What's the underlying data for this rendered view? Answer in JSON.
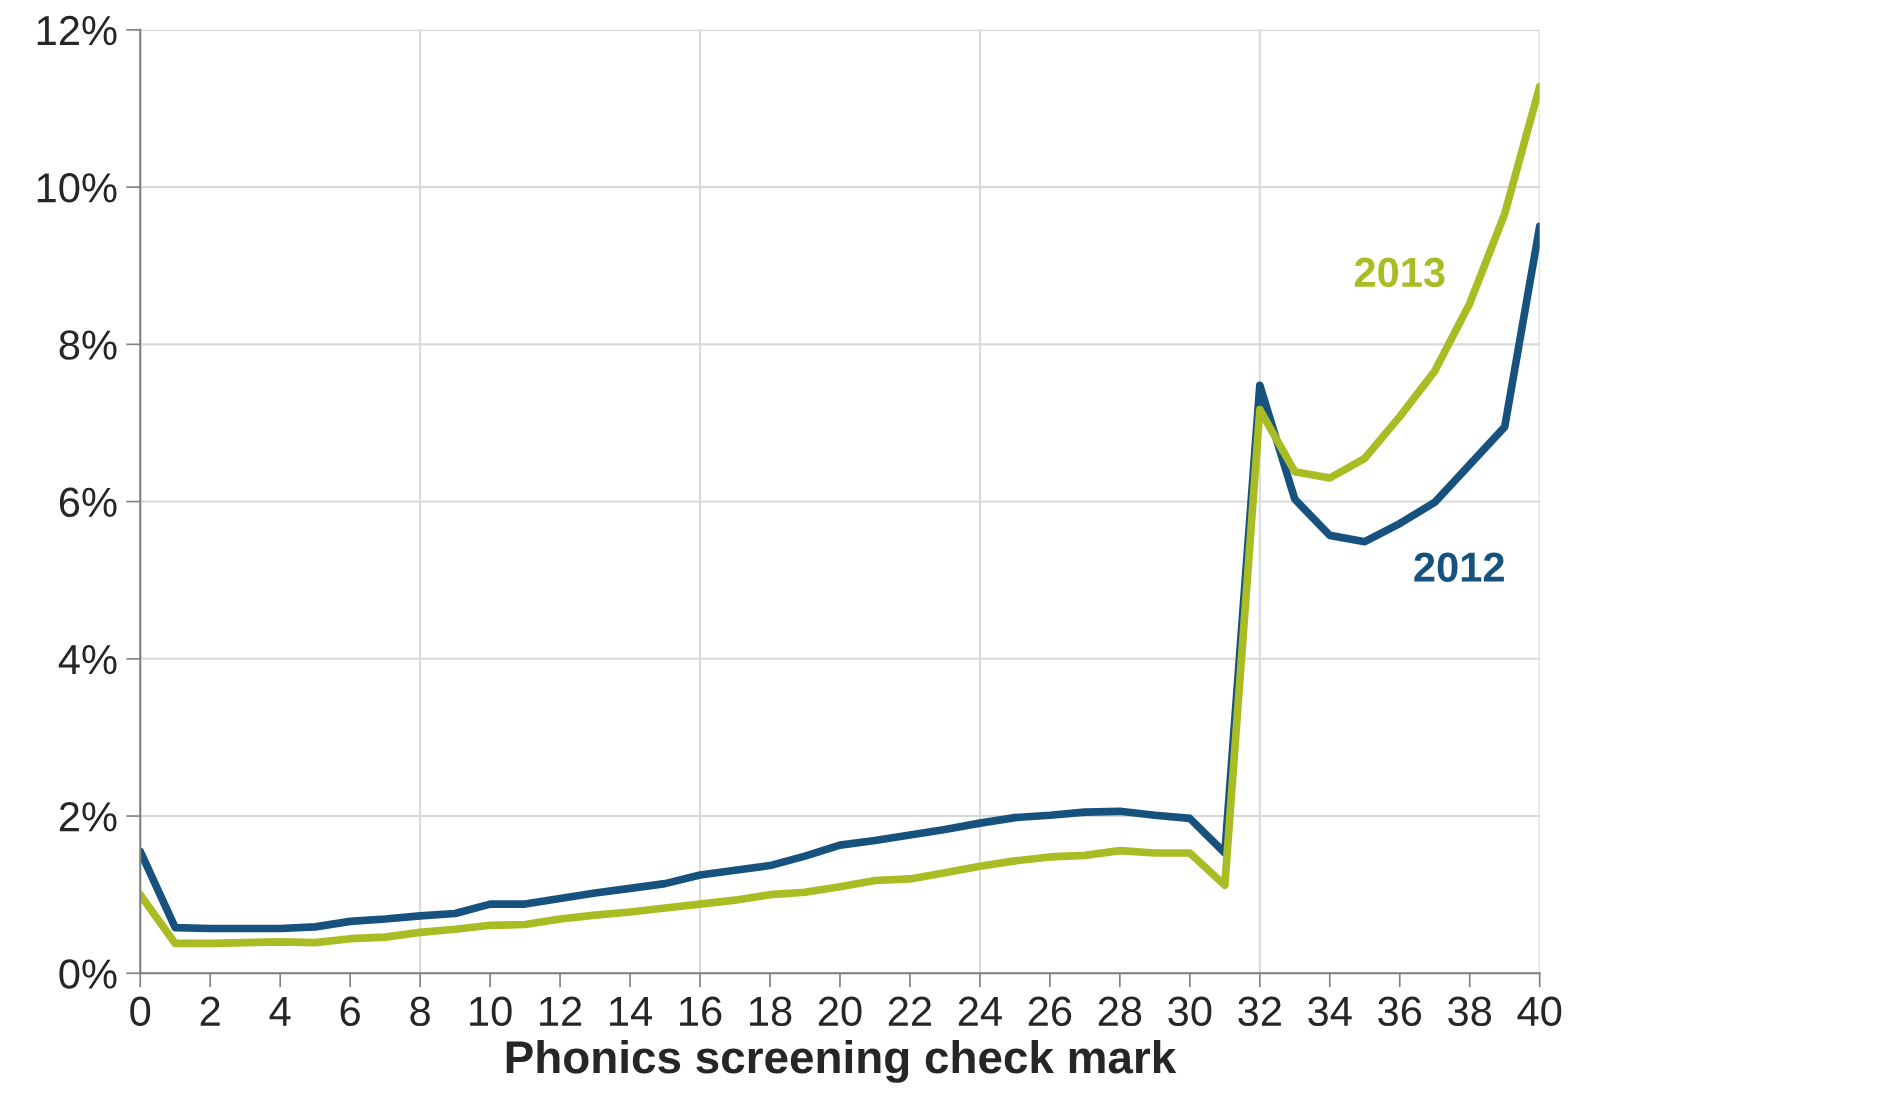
{
  "chart_data": {
    "type": "line",
    "xlabel": "Phonics screening check mark",
    "x": [
      0,
      1,
      2,
      3,
      4,
      5,
      6,
      7,
      8,
      9,
      10,
      11,
      12,
      13,
      14,
      15,
      16,
      17,
      18,
      19,
      20,
      21,
      22,
      23,
      24,
      25,
      26,
      27,
      28,
      29,
      30,
      31,
      32,
      33,
      34,
      35,
      36,
      37,
      38,
      39,
      40
    ],
    "series": [
      {
        "name": "2012",
        "color": "#17527f",
        "values": [
          1.55,
          0.58,
          0.57,
          0.57,
          0.57,
          0.59,
          0.66,
          0.69,
          0.73,
          0.76,
          0.88,
          0.88,
          0.95,
          1.02,
          1.08,
          1.14,
          1.25,
          1.31,
          1.37,
          1.49,
          1.63,
          1.69,
          1.76,
          1.83,
          1.91,
          1.98,
          2.01,
          2.05,
          2.06,
          2.01,
          1.97,
          1.53,
          7.48,
          6.03,
          5.57,
          5.49,
          5.72,
          5.99,
          6.47,
          6.95,
          9.5
        ]
      },
      {
        "name": "2013",
        "color": "#a9bc24",
        "values": [
          1.0,
          0.38,
          0.38,
          0.39,
          0.4,
          0.39,
          0.44,
          0.46,
          0.52,
          0.56,
          0.61,
          0.62,
          0.69,
          0.74,
          0.78,
          0.83,
          0.88,
          0.93,
          1.0,
          1.03,
          1.1,
          1.18,
          1.2,
          1.28,
          1.36,
          1.43,
          1.48,
          1.5,
          1.56,
          1.53,
          1.53,
          1.12,
          7.17,
          6.38,
          6.3,
          6.55,
          7.08,
          7.66,
          8.52,
          9.66,
          11.28
        ]
      }
    ],
    "xlim": [
      0,
      40
    ],
    "xticks": [
      0,
      2,
      4,
      6,
      8,
      10,
      12,
      14,
      16,
      18,
      20,
      22,
      24,
      26,
      28,
      30,
      32,
      34,
      36,
      38,
      40
    ],
    "ylim": [
      0,
      12
    ],
    "yticks": [
      {
        "value": 0,
        "label": "0%"
      },
      {
        "value": 2,
        "label": "2%"
      },
      {
        "value": 4,
        "label": "4%"
      },
      {
        "value": 6,
        "label": "6%"
      },
      {
        "value": 8,
        "label": "8%"
      },
      {
        "value": 10,
        "label": "10%"
      },
      {
        "value": 12,
        "label": "12%"
      }
    ],
    "grid": true,
    "legend": false,
    "marker": "none",
    "line_style": "solid"
  }
}
